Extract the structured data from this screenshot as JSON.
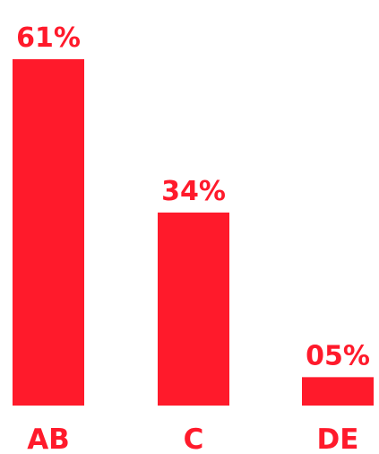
{
  "chart_data": {
    "type": "bar",
    "categories": [
      "AB",
      "C",
      "DE"
    ],
    "values": [
      61,
      34,
      5
    ],
    "data_labels": [
      "61%",
      "34%",
      "05%"
    ],
    "title": "",
    "xlabel": "",
    "ylabel": "",
    "ylim": [
      0,
      61
    ],
    "grid": false,
    "legend": "none",
    "colors": {
      "bar": "#FF1A2B",
      "text": "#FF1A2B"
    }
  }
}
